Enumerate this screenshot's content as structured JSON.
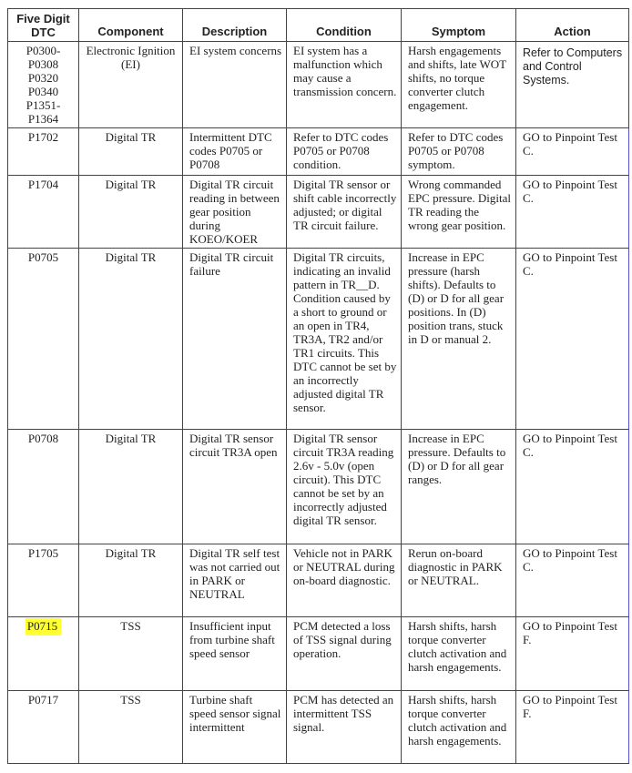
{
  "highlight_color": "#ffff33",
  "headers": [
    "Five Digit DTC",
    "Component",
    "Description",
    "Condition",
    "Symptom",
    "Action"
  ],
  "rows": [
    {
      "dtc": "P0300-\nP0308\nP0320\nP0340\nP1351-\nP1364",
      "component": "Electronic Ignition (EI)",
      "description": "EI system concerns",
      "condition": "EI system has a malfunction which may cause a transmission concern.",
      "symptom": "Harsh engagements and shifts, late WOT shifts, no torque converter clutch engagement.",
      "action": "Refer to Computers and Control Systems."
    },
    {
      "dtc": "P1702",
      "component": "Digital TR",
      "description": "Intermittent DTC codes P0705 or P0708",
      "condition": "Refer to DTC codes P0705 or P0708 condition.",
      "symptom": "Refer to DTC codes P0705 or P0708 symptom.",
      "action": "GO to Pinpoint Test C."
    },
    {
      "dtc": "P1704",
      "component": "Digital TR",
      "description": "Digital TR circuit reading in between gear position during KOEO/KOER",
      "condition": "Digital TR sensor or shift cable incorrectly adjusted; or digital TR circuit failure.",
      "symptom": "Wrong commanded EPC pressure. Digital TR reading the wrong gear position.",
      "action": "GO to Pinpoint Test C."
    },
    {
      "dtc": "P0705",
      "component": "Digital TR",
      "description": "Digital TR circuit failure",
      "condition": "Digital TR circuits, indicating an invalid pattern in TR__D. Condition caused by a short to ground or an open in TR4, TR3A, TR2 and/or TR1 circuits. This DTC cannot be set by an incorrectly adjusted digital TR sensor.",
      "symptom": "Increase in EPC pressure (harsh shifts). Defaults to (D) or D for all gear positions. In (D) position trans, stuck in D or manual 2.",
      "action": "GO to Pinpoint Test C."
    },
    {
      "dtc": "P0708",
      "component": "Digital TR",
      "description": "Digital TR sensor circuit TR3A open",
      "condition": "Digital TR sensor circuit TR3A reading 2.6v - 5.0v (open circuit). This DTC cannot be set by an incorrectly adjusted digital TR sensor.",
      "symptom": "Increase in EPC pressure. Defaults to (D) or D for all gear ranges.",
      "action": "GO to Pinpoint Test C."
    },
    {
      "dtc": "P1705",
      "component": "Digital TR",
      "description": "Digital TR self test was not carried out in PARK or NEUTRAL",
      "condition": "Vehicle not in PARK or NEUTRAL during on-board diagnostic.",
      "symptom": "Rerun on-board diagnostic in PARK or NEUTRAL.",
      "action": "GO to Pinpoint Test C."
    },
    {
      "dtc": "P0715",
      "component": "TSS",
      "description": "Insufficient input from turbine shaft speed sensor",
      "condition": "PCM detected a loss of TSS signal during operation.",
      "symptom": "Harsh shifts, harsh torque converter clutch activation and harsh engagements.",
      "action": "GO to Pinpoint Test F.",
      "highlighted": true
    },
    {
      "dtc": "P0717",
      "component": "TSS",
      "description": "Turbine shaft speed sensor signal intermittent",
      "condition": "PCM has detected an intermittent TSS signal.",
      "symptom": "Harsh shifts, harsh torque converter clutch activation and harsh engagements.",
      "action": "GO to Pinpoint Test F."
    }
  ]
}
